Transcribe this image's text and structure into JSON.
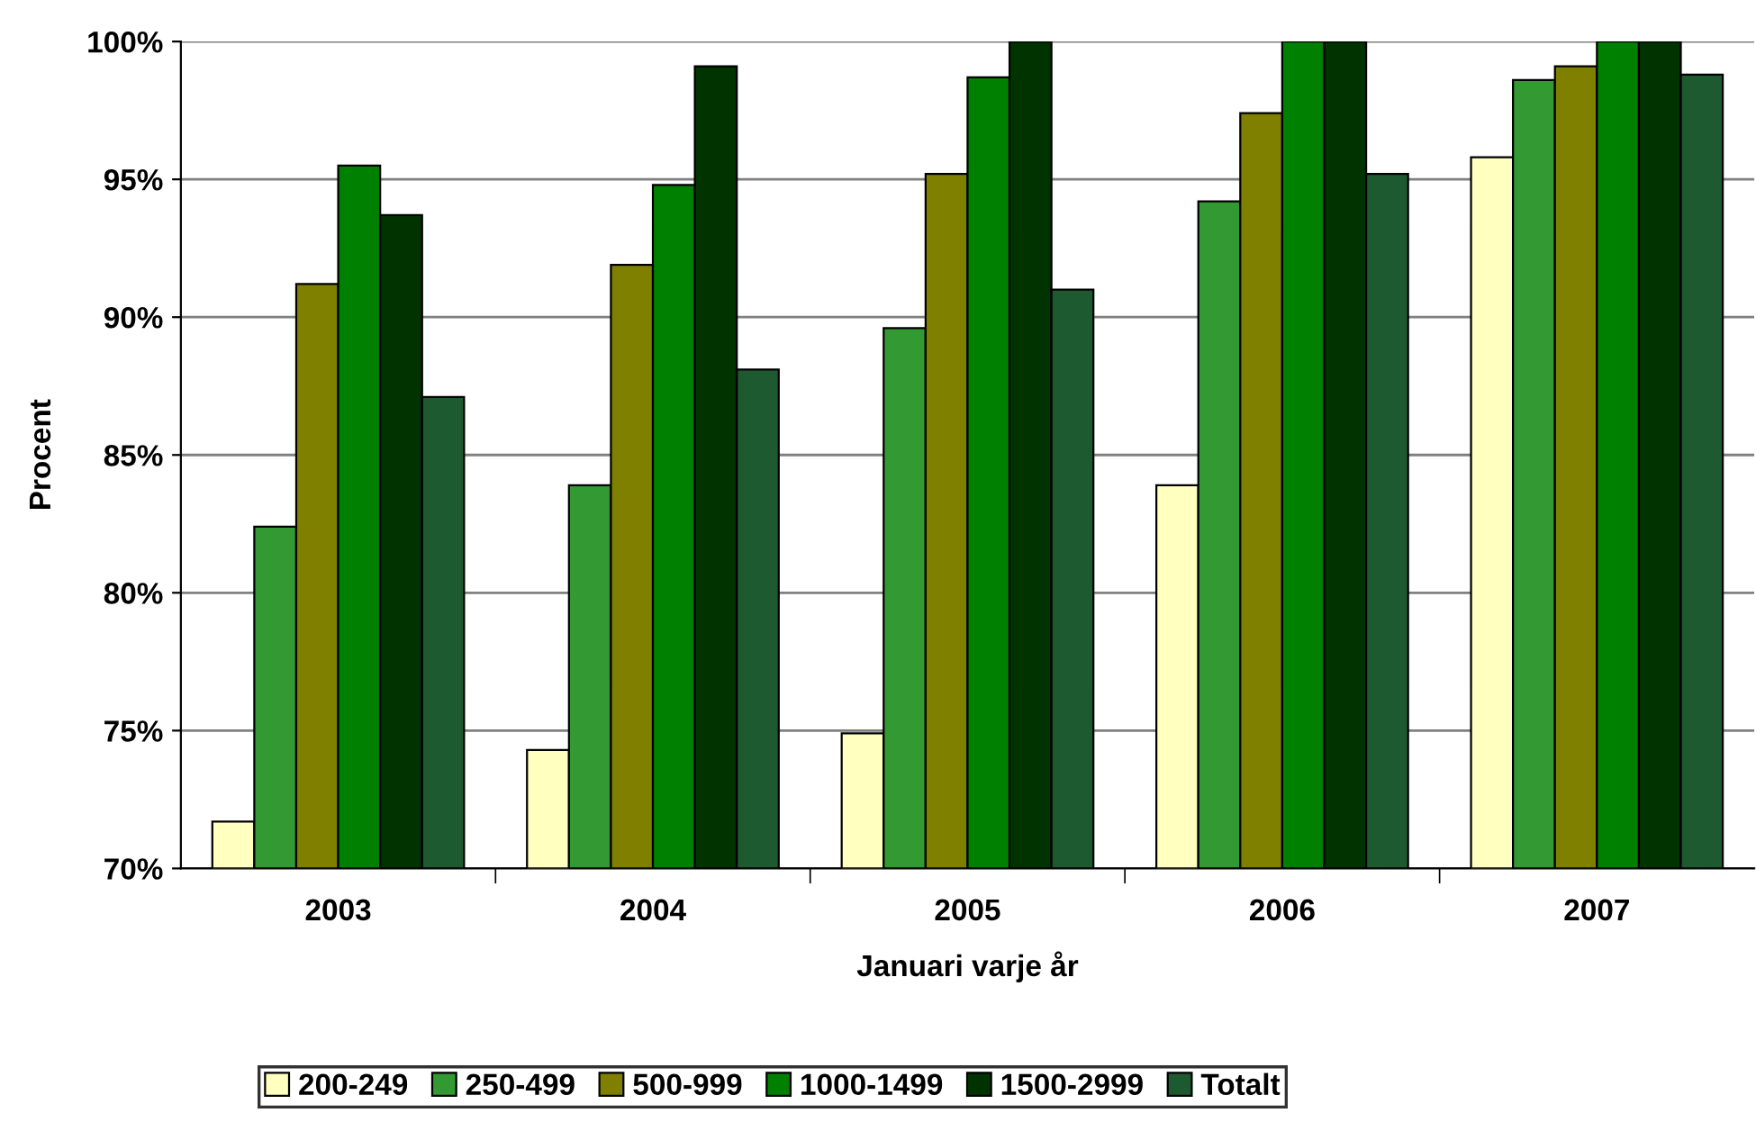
{
  "chart_data": {
    "type": "bar",
    "xlabel": "Januari varje år",
    "ylabel": "Procent",
    "categories": [
      "2003",
      "2004",
      "2005",
      "2006",
      "2007"
    ],
    "series": [
      {
        "name": "200-249",
        "color": "#ffffc0",
        "values": [
          71.7,
          74.3,
          74.9,
          83.9,
          95.8
        ]
      },
      {
        "name": "250-499",
        "color": "#339933",
        "values": [
          82.4,
          83.9,
          89.6,
          94.2,
          98.6
        ]
      },
      {
        "name": "500-999",
        "color": "#808000",
        "values": [
          91.2,
          91.9,
          95.2,
          97.4,
          99.1
        ]
      },
      {
        "name": "1000-1499",
        "color": "#008000",
        "values": [
          95.5,
          94.8,
          98.7,
          100,
          100
        ]
      },
      {
        "name": "1500-2999",
        "color": "#003300",
        "values": [
          93.7,
          99.1,
          100,
          100,
          100
        ]
      },
      {
        "name": "Totalt",
        "color": "#1e5a30",
        "values": [
          87.1,
          88.1,
          91.0,
          95.2,
          98.8
        ]
      }
    ],
    "ylim": [
      70,
      100
    ],
    "yticks": [
      {
        "value": 70,
        "label": "70%"
      },
      {
        "value": 75,
        "label": "75%"
      },
      {
        "value": 80,
        "label": "80%"
      },
      {
        "value": 85,
        "label": "85%"
      },
      {
        "value": 90,
        "label": "90%"
      },
      {
        "value": 95,
        "label": "95%"
      },
      {
        "value": 100,
        "label": "100%"
      }
    ],
    "grid": "y",
    "legend": "bottom"
  }
}
